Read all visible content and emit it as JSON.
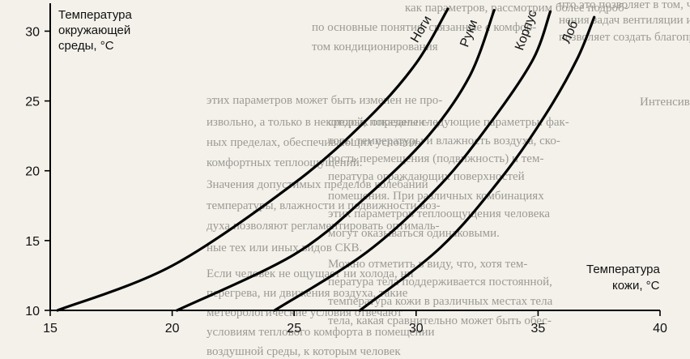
{
  "background_text": [
    "как параметров, рассмотрим более подроб-",
    "по основные понятия, связанные с комфор-",
    "том кондиционирования",
    "что это позволяет в том, что помимо выпол-",
    "нения задач вентиляции и отопления, СКВ",
    "позволяет создать благоприятный микроклимат",
    "Интенсивность теплообмена человека с окружающей",
    "средой, показаны следующие параметры: фак-",
    "торы температуры и влажность воздуха, ско-",
    "рость перемещения (подвижность) и тем-",
    "пература ограждающих поверхностей",
    "помещения. При различных комбинациях",
    "этих параметров теплоощущения человека",
    "могут оказываться одинаковыми.",
    "этих параметров может быть изменен не про-",
    "извольно, а только в некоторых определен-",
    "ных пределах, обеспечивающих условия",
    "комфортных теплоощущений.",
    "Значения допустимых пределов колебаний",
    "температуры, влажности и подвижности воз-",
    "духа позволяют регламентировать оптималь-",
    "ные тех или иных видов СКВ.",
    "Если человек не ощущает ни холода, ни",
    "перегрева, ни движения воздуха, такие",
    "метеорологические условия отвечают",
    "условиям теплового комфорта в помещении",
    "воздушной среды, к которым человек",
    "Можно отметить в виду, что, хотя тем-",
    "пература тела поддерживается постоянной,",
    "температура кожи в различных местах тела",
    "тела, какая сравнительно может быть обес-"
  ],
  "chart_data": {
    "type": "line",
    "ylabel": [
      "Температура",
      "окружающей",
      "среды, °C"
    ],
    "xlabel": [
      "Температура",
      "кожи, °C"
    ],
    "xlim": [
      15,
      40
    ],
    "ylim": [
      10,
      32
    ],
    "xticks": [
      15,
      20,
      25,
      30,
      35,
      40
    ],
    "yticks": [
      10,
      15,
      20,
      25,
      30
    ],
    "grid": false,
    "series": [
      {
        "name": "Ноги",
        "x": [
          15.3,
          20,
          25,
          28,
          30.0,
          31.3
        ],
        "y": [
          10,
          13.2,
          19.1,
          23.7,
          27.7,
          31.6
        ]
      },
      {
        "name": "Руки",
        "x": [
          20.2,
          25,
          28,
          30.5,
          32.2,
          33.2
        ],
        "y": [
          10,
          14.0,
          18.2,
          22.5,
          26.8,
          31.5
        ]
      },
      {
        "name": "Корпус",
        "x": [
          24.2,
          28,
          31,
          33.2,
          34.8,
          35.5
        ],
        "y": [
          10,
          14.2,
          19.0,
          23.8,
          28.0,
          31.4
        ]
      },
      {
        "name": "Лоб",
        "x": [
          27.7,
          31,
          33.5,
          35.3,
          36.6,
          37.3
        ],
        "y": [
          10,
          14.5,
          19.5,
          24.0,
          28.0,
          31.0
        ]
      }
    ]
  }
}
